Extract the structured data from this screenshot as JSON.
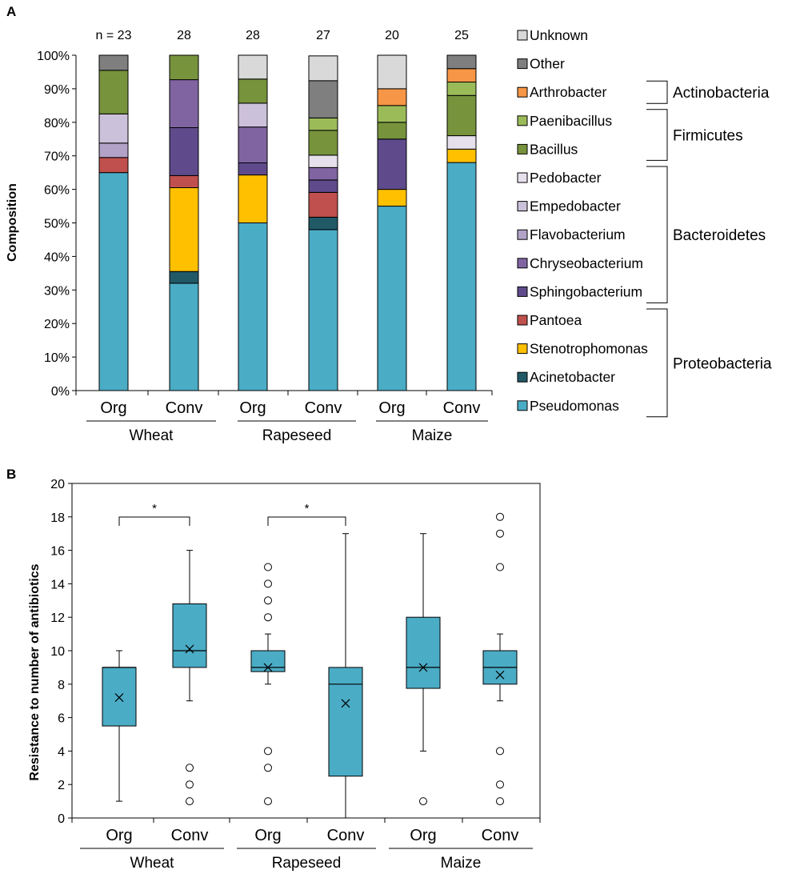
{
  "chart_data": [
    {
      "panel_label": "A",
      "type": "bar",
      "stacked": true,
      "ylabel": "Composition",
      "ylim": [
        0,
        100
      ],
      "yticks": [
        "0%",
        "10%",
        "20%",
        "30%",
        "40%",
        "50%",
        "60%",
        "70%",
        "80%",
        "90%",
        "100%"
      ],
      "categories": [
        "Org",
        "Conv",
        "Org",
        "Conv",
        "Org",
        "Conv"
      ],
      "groups": [
        "Wheat",
        "Rapeseed",
        "Maize"
      ],
      "n_labels": [
        "n = 23",
        "28",
        "28",
        "27",
        "20",
        "25"
      ],
      "series": [
        {
          "name": "Pseudomonas",
          "color": "#4BACC6",
          "values": [
            65,
            32,
            50,
            48,
            55,
            68
          ]
        },
        {
          "name": "Acinetobacter",
          "color": "#215967",
          "values": [
            0,
            3.5,
            0,
            3.7,
            0,
            0
          ]
        },
        {
          "name": "Stenotrophomonas",
          "color": "#FFC000",
          "values": [
            0,
            25,
            14.3,
            0,
            5,
            4
          ]
        },
        {
          "name": "Pantoea",
          "color": "#C0504D",
          "values": [
            4.5,
            3.6,
            0,
            7.4,
            0,
            0
          ]
        },
        {
          "name": "Sphingobacterium",
          "color": "#5F4B8B",
          "values": [
            0,
            14.3,
            3.6,
            3.7,
            15,
            0
          ]
        },
        {
          "name": "Chryseobacterium",
          "color": "#8064A2",
          "values": [
            0,
            14.3,
            10.7,
            3.7,
            0,
            0
          ]
        },
        {
          "name": "Flavobacterium",
          "color": "#B3A2C7",
          "values": [
            4.3,
            0,
            0,
            0,
            0,
            0
          ]
        },
        {
          "name": "Empedobacter",
          "color": "#CCC1DA",
          "values": [
            8.7,
            0,
            7.1,
            0,
            0,
            0
          ]
        },
        {
          "name": "Pedobacter",
          "color": "#E6E0EC",
          "values": [
            0,
            0,
            0,
            3.7,
            0,
            4
          ]
        },
        {
          "name": "Bacillus",
          "color": "#77933C",
          "values": [
            13,
            7.3,
            7.2,
            7.4,
            5,
            12
          ]
        },
        {
          "name": "Paenibacillus",
          "color": "#9BBB59",
          "values": [
            0,
            0,
            0,
            3.7,
            5,
            4
          ]
        },
        {
          "name": "Arthrobacter",
          "color": "#F79646",
          "values": [
            0,
            0,
            0,
            0,
            5,
            4
          ]
        },
        {
          "name": "Other",
          "color": "#7F7F7F",
          "values": [
            4.5,
            0,
            0,
            11.1,
            0,
            4
          ]
        },
        {
          "name": "Unknown",
          "color": "#D9D9D9",
          "values": [
            0,
            0,
            7.1,
            7.4,
            10,
            0
          ]
        }
      ],
      "legend_order": [
        "Unknown",
        "Other",
        "Arthrobacter",
        "Paenibacillus",
        "Bacillus",
        "Pedobacter",
        "Empedobacter",
        "Flavobacterium",
        "Chryseobacterium",
        "Sphingobacterium",
        "Pantoea",
        "Stenotrophomonas",
        "Acinetobacter",
        "Pseudomonas"
      ],
      "phyla": [
        {
          "name": "Actinobacteria",
          "members": [
            "Arthrobacter"
          ]
        },
        {
          "name": "Firmicutes",
          "members": [
            "Paenibacillus",
            "Bacillus"
          ]
        },
        {
          "name": "Bacteroidetes",
          "members": [
            "Pedobacter",
            "Empedobacter",
            "Flavobacterium",
            "Chryseobacterium",
            "Sphingobacterium"
          ]
        },
        {
          "name": "Proteobacteria",
          "members": [
            "Pantoea",
            "Stenotrophomonas",
            "Acinetobacter",
            "Pseudomonas"
          ]
        }
      ],
      "legend_placement": "right"
    },
    {
      "panel_label": "B",
      "type": "box",
      "ylabel": "Resistance to number  of antibiotics",
      "ylim": [
        0,
        20
      ],
      "yticks": [
        0,
        2,
        4,
        6,
        8,
        10,
        12,
        14,
        16,
        18,
        20
      ],
      "categories": [
        "Org",
        "Conv",
        "Org",
        "Conv",
        "Org",
        "Conv"
      ],
      "groups": [
        "Wheat",
        "Rapeseed",
        "Maize"
      ],
      "box_color": "#4BACC6",
      "boxes": [
        {
          "q1": 5.5,
          "median": 9,
          "q3": 9,
          "whisker_low": 1,
          "whisker_high": 10,
          "mean": 7.2,
          "outliers": []
        },
        {
          "q1": 9,
          "median": 10,
          "q3": 12.8,
          "whisker_low": 7,
          "whisker_high": 16,
          "mean": 10.1,
          "outliers": [
            1,
            2,
            3
          ]
        },
        {
          "q1": 8.75,
          "median": 9,
          "q3": 10,
          "whisker_low": 8,
          "whisker_high": 11,
          "mean": 9,
          "outliers": [
            1,
            3,
            4,
            12,
            13,
            14,
            15
          ]
        },
        {
          "q1": 2.5,
          "median": 8,
          "q3": 9,
          "whisker_low": 0,
          "whisker_high": 17,
          "mean": 6.85,
          "outliers": []
        },
        {
          "q1": 7.75,
          "median": 9,
          "q3": 12,
          "whisker_low": 4,
          "whisker_high": 17,
          "mean": 9,
          "outliers": [
            1
          ]
        },
        {
          "q1": 8,
          "median": 9,
          "q3": 10,
          "whisker_low": 7,
          "whisker_high": 11,
          "mean": 8.55,
          "outliers": [
            1,
            2,
            4,
            15,
            17,
            18
          ]
        }
      ],
      "significance": [
        {
          "between": [
            0,
            1
          ],
          "label": "*"
        },
        {
          "between": [
            2,
            3
          ],
          "label": "*"
        }
      ]
    }
  ]
}
